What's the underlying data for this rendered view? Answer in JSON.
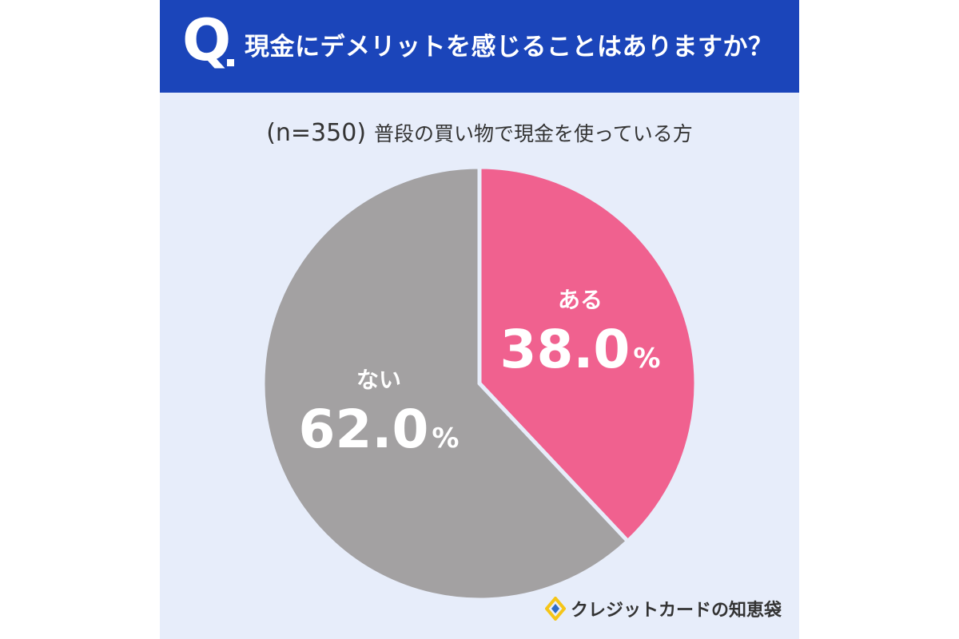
{
  "header": {
    "q_mark": "Q",
    "question": "現金にデメリットを感じることはありますか？"
  },
  "subtitle": {
    "sample": "(n=350)",
    "population": "普段の買い物で現金を使っている方"
  },
  "chart_data": {
    "type": "pie",
    "title": "現金にデメリットを感じることはありますか？",
    "subtitle": "(n=350) 普段の買い物で現金を使っている方",
    "start": "12 o'clock",
    "direction": "clockwise",
    "slices": [
      {
        "label": "ある",
        "value": 38.0,
        "value_label": "38.0",
        "unit": "%",
        "color": "#f0618f"
      },
      {
        "label": "ない",
        "value": 62.0,
        "value_label": "62.0",
        "unit": "%",
        "color": "#a3a1a2"
      }
    ]
  },
  "brand": {
    "name": "クレジットカードの知恵袋",
    "icon": "diamond-logo-icon",
    "colors": {
      "yellow": "#f5c518",
      "blue": "#2f6cc7"
    }
  }
}
